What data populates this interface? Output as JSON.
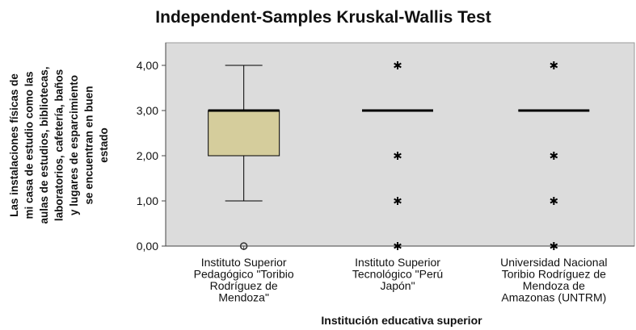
{
  "chart_data": {
    "type": "boxplot",
    "title": "Independent-Samples Kruskal-Wallis Test",
    "y_label": [
      "Las instalaciones físicas de",
      "mi casa de estudio como las",
      "aulas de estudios, bibliotecas,",
      "laboratorios, cafetería, baños",
      "y lugares de esparcimiento",
      "se encuentran en buen",
      "estado"
    ],
    "x_label": "Institución educativa superior",
    "categories": [
      [
        "Instituto Superior",
        "Pedagógico \"Toribio",
        "Rodríguez de",
        "Mendoza\""
      ],
      [
        "Instituto Superior",
        "Tecnológico \"Perú",
        "Japón\""
      ],
      [
        "Universidad Nacional",
        "Toribio Rodríguez de",
        "Mendoza de",
        "Amazonas (UNTRM)"
      ]
    ],
    "boxes": [
      {
        "min": 1,
        "q1": 2,
        "median": 3,
        "q3": 3,
        "max": 4,
        "outliers": [
          0
        ],
        "extremes": []
      },
      {
        "min": 3,
        "q1": 3,
        "median": 3,
        "q3": 3,
        "max": 3,
        "outliers": [],
        "extremes": [
          4,
          2,
          1,
          0
        ]
      },
      {
        "min": 3,
        "q1": 3,
        "median": 3,
        "q3": 3,
        "max": 3,
        "outliers": [],
        "extremes": [
          4,
          2,
          1,
          0
        ]
      }
    ],
    "color": "#d5cd9c",
    "ylim": [
      0,
      4.5
    ],
    "yticks": [
      {
        "value": 0,
        "label": "0,00"
      },
      {
        "value": 1,
        "label": "1,00"
      },
      {
        "value": 2,
        "label": "2,00"
      },
      {
        "value": 3,
        "label": "3,00"
      },
      {
        "value": 4,
        "label": "4,00"
      }
    ]
  }
}
